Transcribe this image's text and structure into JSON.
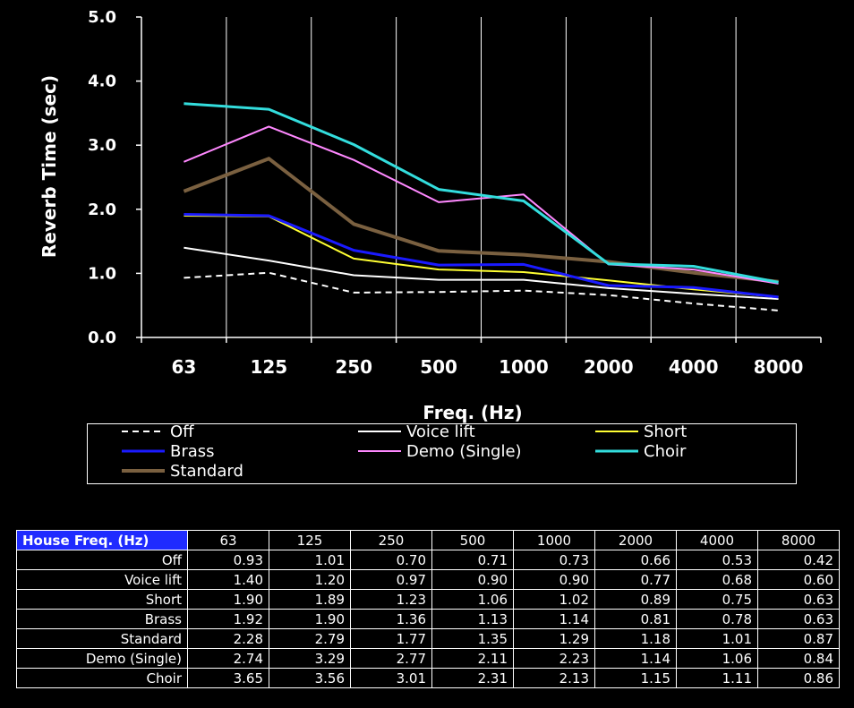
{
  "chart_data": {
    "type": "line",
    "categories": [
      "63",
      "125",
      "250",
      "500",
      "1000",
      "2000",
      "4000",
      "8000"
    ],
    "xlabel": "Freq. (Hz)",
    "ylabel": "Reverb Time (sec)",
    "ylim": [
      0,
      5
    ],
    "yticks": [
      "0.0",
      "1.0",
      "2.0",
      "3.0",
      "4.0",
      "5.0"
    ],
    "grid": "vertical",
    "legend_position": "bottom",
    "series": [
      {
        "name": "Off",
        "color": "#ffffff",
        "dash": true,
        "width": 2,
        "values": [
          0.93,
          1.01,
          0.7,
          0.71,
          0.73,
          0.66,
          0.53,
          0.42
        ]
      },
      {
        "name": "Voice lift",
        "color": "#ffffff",
        "dash": false,
        "width": 2,
        "values": [
          1.4,
          1.2,
          0.97,
          0.9,
          0.9,
          0.77,
          0.68,
          0.6
        ]
      },
      {
        "name": "Short",
        "color": "#ffff33",
        "dash": false,
        "width": 2,
        "values": [
          1.9,
          1.89,
          1.23,
          1.06,
          1.02,
          0.89,
          0.75,
          0.63
        ]
      },
      {
        "name": "Brass",
        "color": "#1a1aff",
        "dash": false,
        "width": 3,
        "values": [
          1.92,
          1.9,
          1.36,
          1.13,
          1.14,
          0.81,
          0.78,
          0.63
        ]
      },
      {
        "name": "Demo (Single)",
        "color": "#ff88ff",
        "dash": false,
        "width": 2,
        "values": [
          2.74,
          3.29,
          2.77,
          2.11,
          2.23,
          1.14,
          1.06,
          0.84
        ]
      },
      {
        "name": "Choir",
        "color": "#33dddd",
        "dash": false,
        "width": 3,
        "values": [
          3.65,
          3.56,
          3.01,
          2.31,
          2.13,
          1.15,
          1.11,
          0.86
        ]
      },
      {
        "name": "Standard",
        "color": "#7a6040",
        "dash": false,
        "width": 4,
        "values": [
          2.28,
          2.79,
          1.77,
          1.35,
          1.29,
          1.18,
          1.01,
          0.87
        ]
      }
    ]
  },
  "table": {
    "corner_label": "House Freq. (Hz)",
    "columns": [
      "63",
      "125",
      "250",
      "500",
      "1000",
      "2000",
      "4000",
      "8000"
    ],
    "rows": [
      {
        "label": "Off",
        "values": [
          "0.93",
          "1.01",
          "0.70",
          "0.71",
          "0.73",
          "0.66",
          "0.53",
          "0.42"
        ]
      },
      {
        "label": "Voice lift",
        "values": [
          "1.40",
          "1.20",
          "0.97",
          "0.90",
          "0.90",
          "0.77",
          "0.68",
          "0.60"
        ]
      },
      {
        "label": "Short",
        "values": [
          "1.90",
          "1.89",
          "1.23",
          "1.06",
          "1.02",
          "0.89",
          "0.75",
          "0.63"
        ]
      },
      {
        "label": "Brass",
        "values": [
          "1.92",
          "1.90",
          "1.36",
          "1.13",
          "1.14",
          "0.81",
          "0.78",
          "0.63"
        ]
      },
      {
        "label": "Standard",
        "values": [
          "2.28",
          "2.79",
          "1.77",
          "1.35",
          "1.29",
          "1.18",
          "1.01",
          "0.87"
        ]
      },
      {
        "label": "Demo (Single)",
        "values": [
          "2.74",
          "3.29",
          "2.77",
          "2.11",
          "2.23",
          "1.14",
          "1.06",
          "0.84"
        ]
      },
      {
        "label": "Choir",
        "values": [
          "3.65",
          "3.56",
          "3.01",
          "2.31",
          "2.13",
          "1.15",
          "1.11",
          "0.86"
        ]
      }
    ]
  }
}
